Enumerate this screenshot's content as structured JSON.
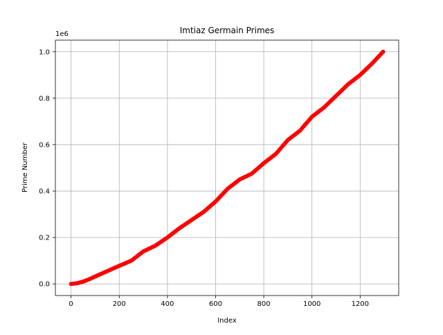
{
  "chart_data": {
    "type": "scatter",
    "title": "Imtiaz Germain Primes",
    "xlabel": "Index",
    "ylabel": "Prime Number",
    "y_offset_text": "1e6",
    "xlim": [
      -65,
      1360
    ],
    "ylim": [
      -50000,
      1050000
    ],
    "xticks": [
      0,
      200,
      400,
      600,
      800,
      1000,
      1200
    ],
    "xtick_labels": [
      "0",
      "200",
      "400",
      "600",
      "800",
      "1000",
      "1200"
    ],
    "yticks": [
      0,
      200000,
      400000,
      600000,
      800000,
      1000000
    ],
    "ytick_labels": [
      "0.0",
      "0.2",
      "0.4",
      "0.6",
      "0.8",
      "1.0"
    ],
    "grid": true,
    "marker_color": "#ff0000",
    "series": [
      {
        "x": [
          0,
          25,
          50,
          75,
          100,
          150,
          200,
          250,
          300,
          350,
          400,
          450,
          500,
          550,
          600,
          650,
          700,
          750,
          800,
          850,
          900,
          950,
          1000,
          1050,
          1100,
          1150,
          1200,
          1250,
          1295
        ],
        "values": [
          0,
          3000,
          10000,
          20000,
          32000,
          55000,
          78000,
          100000,
          140000,
          165000,
          200000,
          240000,
          275000,
          310000,
          355000,
          410000,
          450000,
          475000,
          520000,
          560000,
          620000,
          660000,
          720000,
          760000,
          810000,
          860000,
          900000,
          950000,
          1000000
        ]
      }
    ]
  }
}
